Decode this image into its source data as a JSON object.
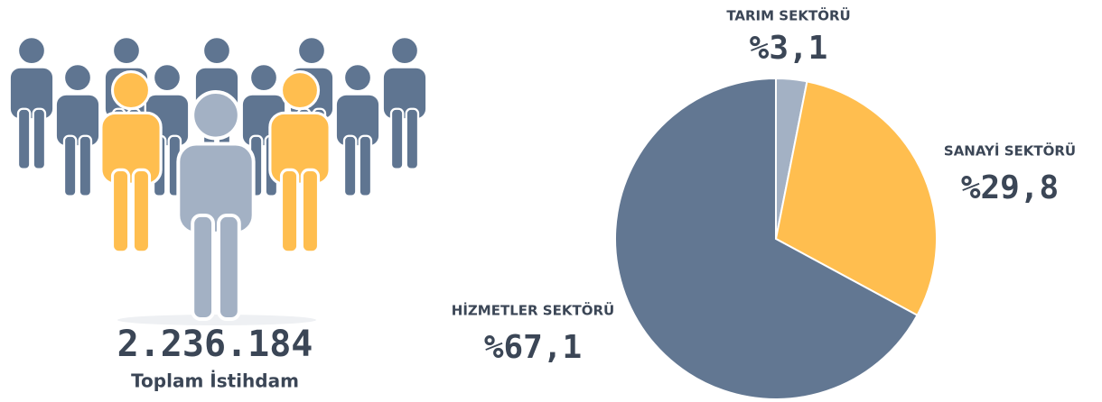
{
  "summary": {
    "total": "2.236.184",
    "caption": "Toplam İstihdam"
  },
  "chart_data": {
    "type": "pie",
    "categories": [
      "TARIM SEKTÖRÜ",
      "SANAYİ SEKTÖRÜ",
      "HİZMETLER SEKTÖRÜ"
    ],
    "values": [
      3.1,
      29.8,
      67.1
    ],
    "value_labels": [
      "%3,1",
      "%29,8",
      "%67,1"
    ],
    "colors": [
      "#a3b1c4",
      "#ffbe4f",
      "#627792"
    ]
  }
}
